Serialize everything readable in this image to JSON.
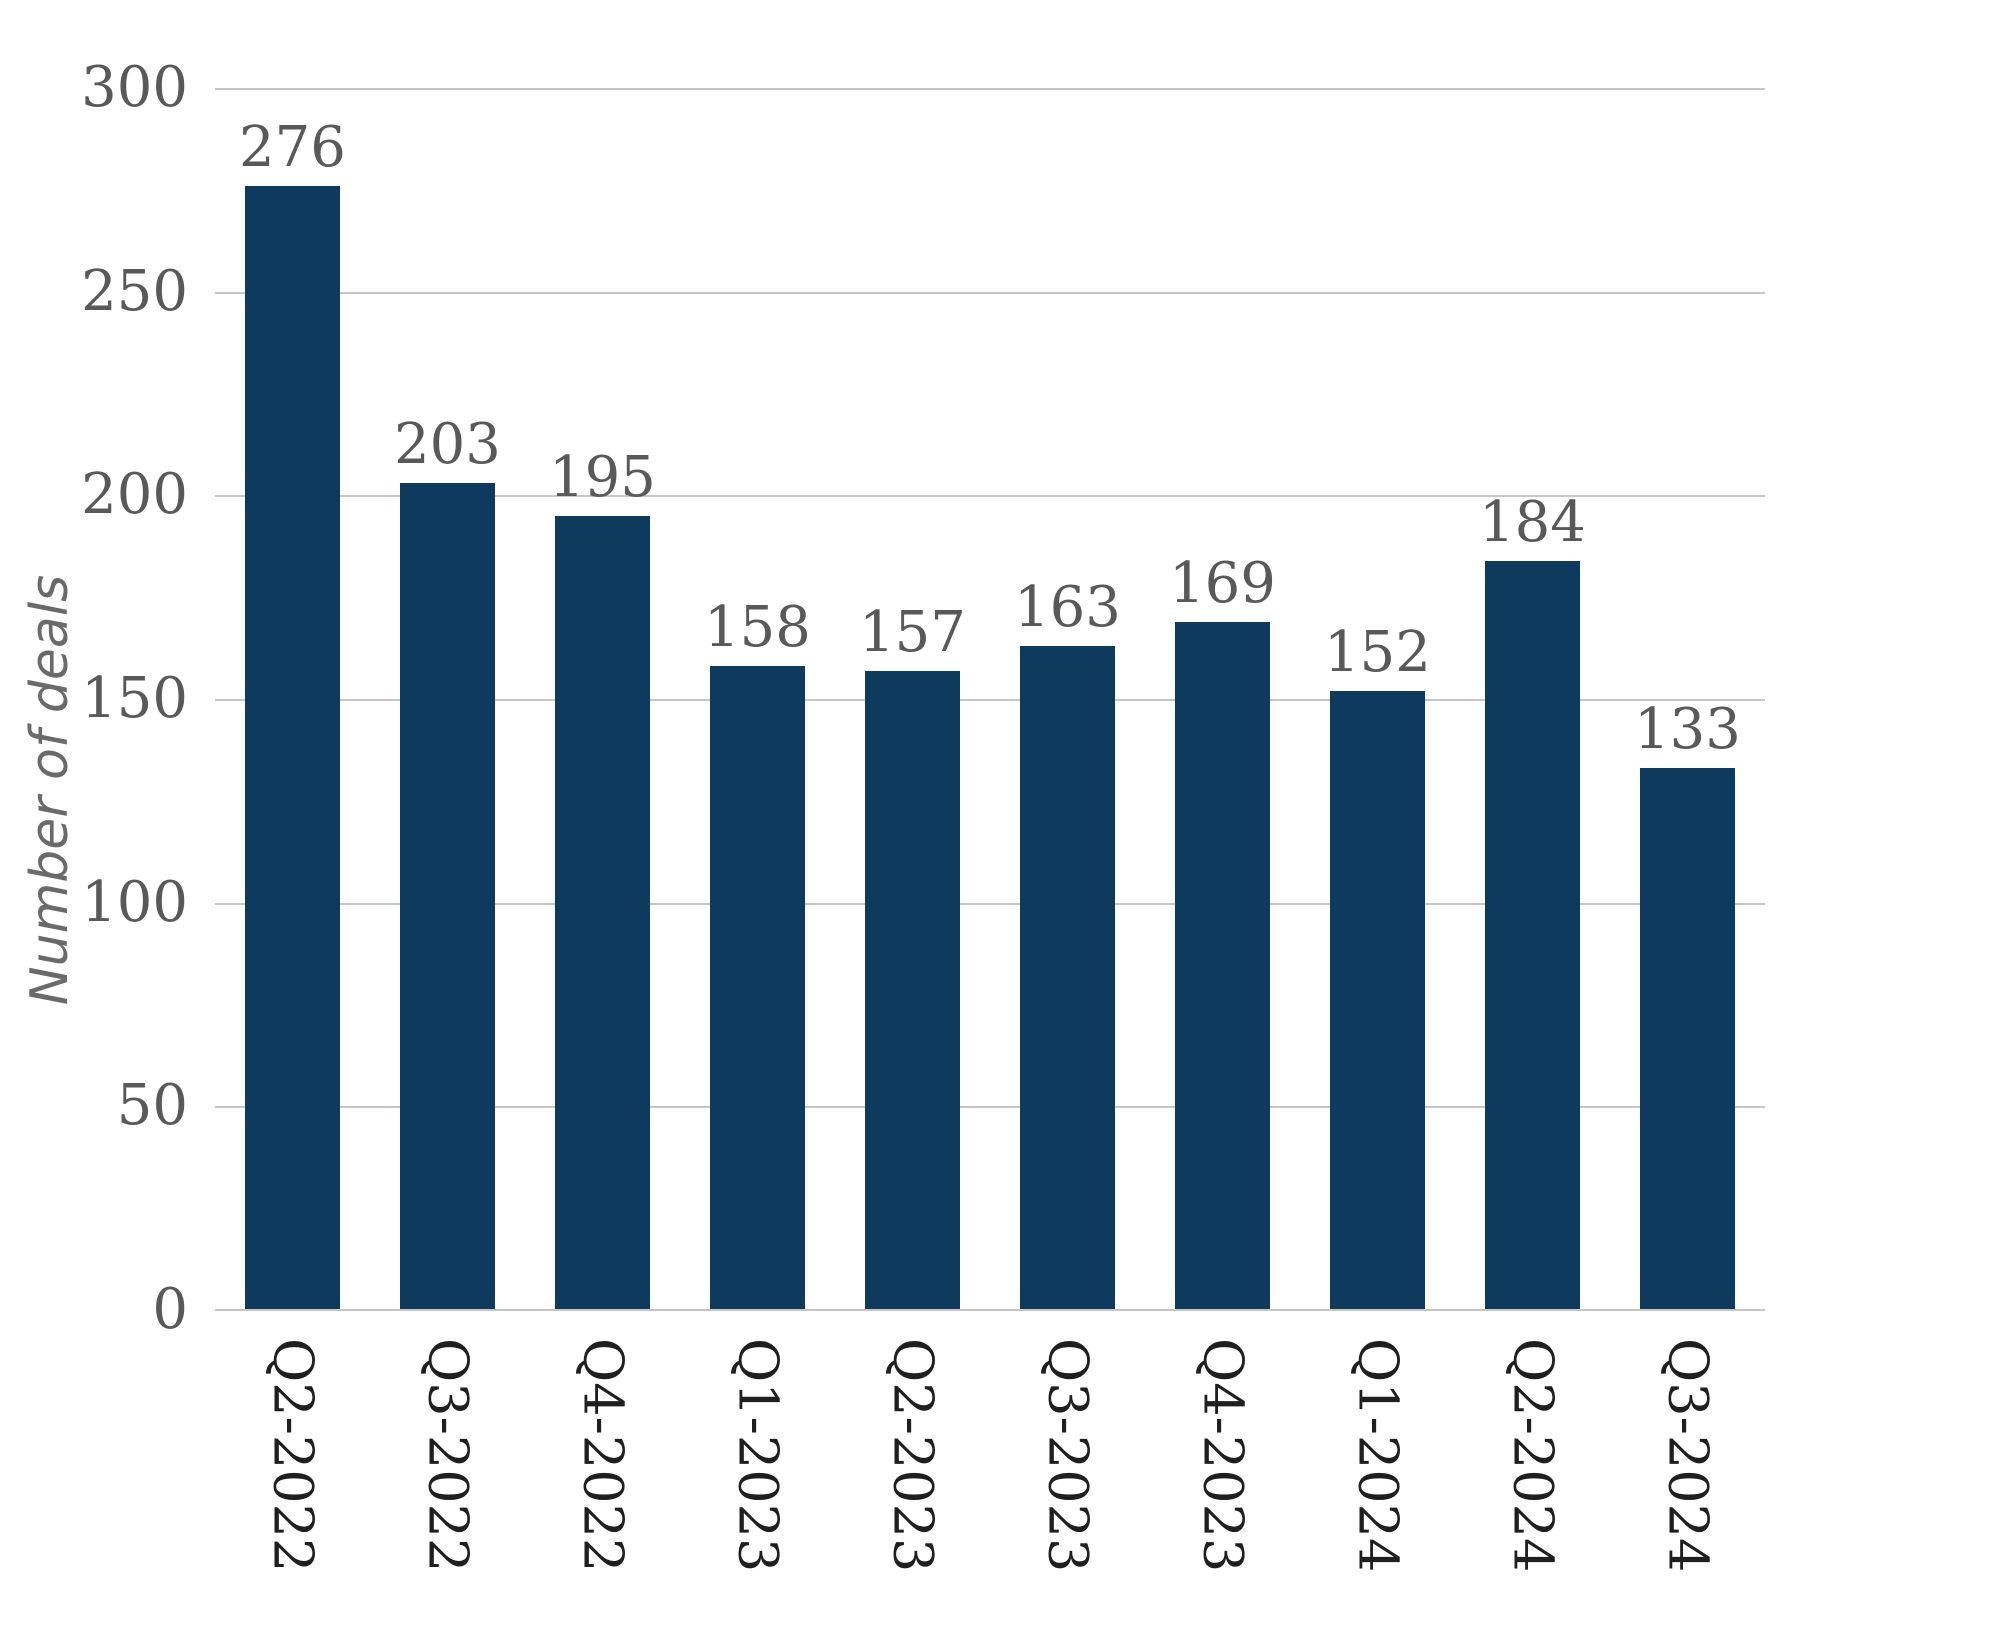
{
  "chart_data": {
    "type": "bar",
    "title": "",
    "xlabel": "",
    "ylabel": "Number of deals",
    "categories": [
      "Q2-2022",
      "Q3-2022",
      "Q4-2022",
      "Q1-2023",
      "Q2-2023",
      "Q3-2023",
      "Q4-2023",
      "Q1-2024",
      "Q2-2024",
      "Q3-2024"
    ],
    "values": [
      276,
      203,
      195,
      158,
      157,
      163,
      169,
      152,
      184,
      133
    ],
    "ylim": [
      0,
      300
    ],
    "yticks": [
      0,
      50,
      100,
      150,
      200,
      250,
      300
    ],
    "grid": true,
    "legend": false,
    "colors": {
      "bar": "#0e3a5e",
      "gridline": "#c6c6c6",
      "value_label": "#595959",
      "y_tick_label": "#595959",
      "x_tick_label": "#1f1f1f",
      "axis_title": "#6a6a6a"
    }
  }
}
